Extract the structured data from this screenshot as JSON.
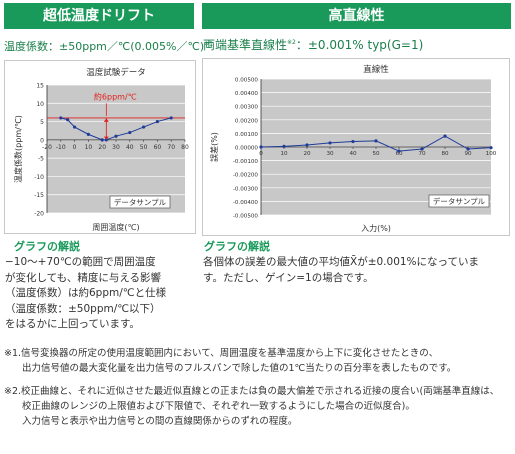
{
  "left": {
    "header": "超低温度ドリフト",
    "spec_main": "温度係数：±50ppm／℃(0.005%／℃)",
    "spec_sup": "※1",
    "section_title": "グラフの解説",
    "body_lines": [
      "−10～+70℃の範囲で周囲温度",
      "が変化しても、精度に与える影響",
      "（温度係数）は約6ppm/℃と仕様",
      "（温度係数：±50ppm/℃以下）",
      "をはるかに上回っています。"
    ]
  },
  "right": {
    "header": "高直線性",
    "spec_main": "両端基準直線性",
    "spec_sup": "※2",
    "spec_rest": "：±0.001% typ(G=1)",
    "section_title": "グラフの解説",
    "body_lines": [
      "各個体の誤差の最大値の平均値X̄が±0.001%になっていま",
      "す。ただし、ゲイン=1の場合です。"
    ]
  },
  "notes": [
    "※1.信号変換器の所定の使用温度範囲内において、周囲温度を基準温度から上下に変化させたときの、",
    "出力信号値の最大変化量を出力信号のフルスパンで除した値の1℃当たりの百分率を表したものです。",
    "※2.校正曲線と、それに近似させた最近似直線との正または負の最大偏差で示される近接の度合い(両端基準直線は、",
    "校正曲線のレンジの上限値および下限値で、それぞれ一致するようにした場合の近似度合)。",
    "入力信号と表示や出力信号との間の直線関係からのずれの程度。"
  ],
  "chart_data": [
    {
      "type": "line",
      "title": "温度試験データ",
      "xlabel": "周囲温度(℃)",
      "ylabel": "温度係数(ppm/℃)",
      "x_ticks": [
        "-20",
        "-10",
        "0",
        "10",
        "20",
        "30",
        "40",
        "50",
        "60",
        "70",
        "80"
      ],
      "y_ticks": [
        "15",
        "10",
        "5",
        "0",
        "-5",
        "-10",
        "-15",
        "-20"
      ],
      "xlim": [
        -20,
        80
      ],
      "ylim": [
        -20,
        15
      ],
      "grid": "horizontal",
      "annotation": "約6ppm/℃",
      "reference_lines": [
        6
      ],
      "legend_box": "データサンプル",
      "colors": {
        "series": "#1f3c99",
        "annotation": "#e0201b",
        "plot_bg": "#c8c8c8"
      },
      "series": [
        {
          "x": [
            -10,
            -5,
            0,
            10,
            20,
            23,
            30,
            40,
            50,
            60,
            70
          ],
          "y": [
            6,
            5.5,
            3.5,
            1.5,
            0,
            0,
            1,
            2,
            3.5,
            5,
            6
          ]
        }
      ]
    },
    {
      "type": "line",
      "title": "直線性",
      "xlabel": "入力(%)",
      "ylabel": "誤差(%)",
      "x_ticks": [
        "0",
        "10",
        "20",
        "30",
        "40",
        "50",
        "60",
        "70",
        "80",
        "90",
        "100"
      ],
      "y_ticks": [
        "0.00500",
        "0.00400",
        "0.00300",
        "0.00200",
        "0.00100",
        "0.00000",
        "-0.00100",
        "-0.00200",
        "-0.00300",
        "-0.00400",
        "-0.00500"
      ],
      "xlim": [
        0,
        100
      ],
      "ylim": [
        -0.005,
        0.005
      ],
      "grid": "horizontal",
      "legend_box": "データサンプル",
      "colors": {
        "series": "#1f3c99",
        "plot_bg": "#c8c8c8"
      },
      "series": [
        {
          "x": [
            0,
            10,
            20,
            30,
            40,
            50,
            60,
            70,
            80,
            90,
            100
          ],
          "y": [
            0.0,
            5e-05,
            0.00015,
            0.0003,
            0.0004,
            0.00045,
            -0.0003,
            -0.00015,
            0.0008,
            -0.00015,
            -5e-05
          ]
        }
      ]
    }
  ]
}
